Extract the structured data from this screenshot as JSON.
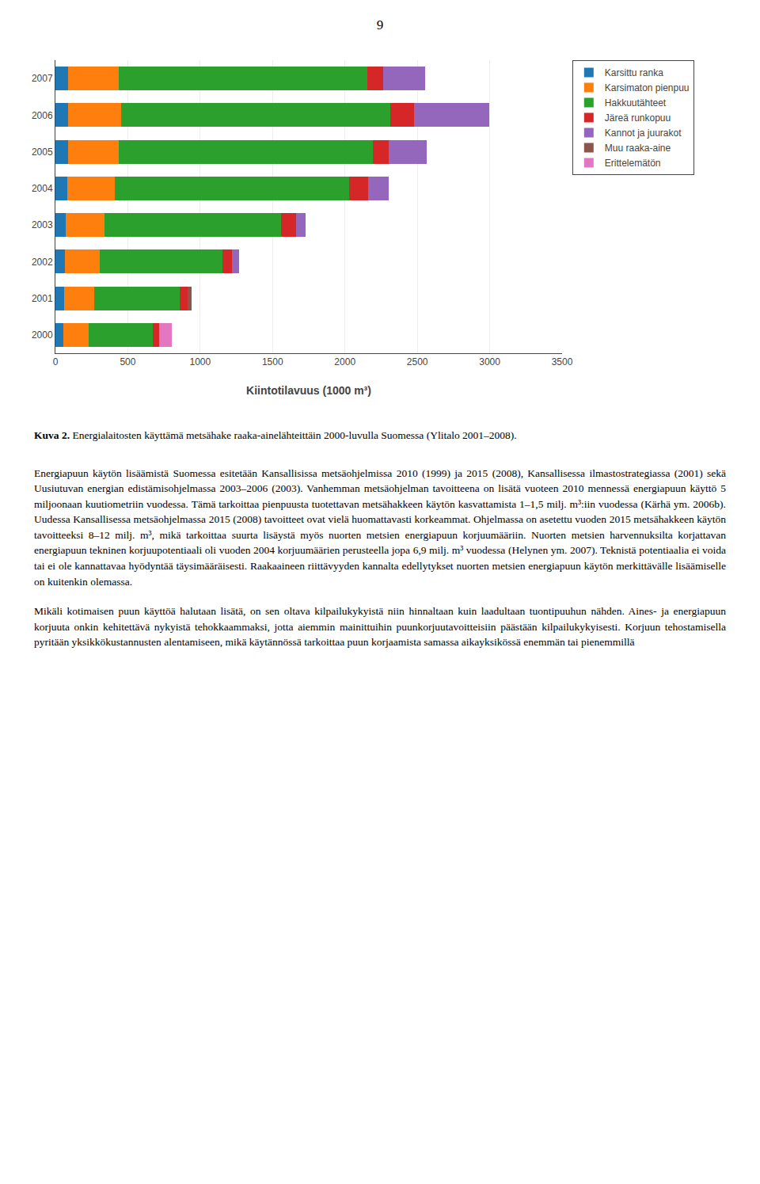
{
  "page_number": "9",
  "caption": {
    "bold": "Kuva 2.",
    "text": " Energialaitosten käyttämä metsähake raaka-ainelähteittäin 2000-luvulla Suomessa (Ylitalo 2001–2008)."
  },
  "paragraphs": [
    "Energiapuun käytön lisäämistä Suomessa esitetään Kansallisissa metsäohjelmissa 2010 (1999) ja 2015 (2008), Kansallisessa ilmastostrategiassa (2001) sekä Uusiutuvan energian edistämisohjelmassa 2003–2006 (2003). Vanhemman metsäohjelman tavoitteena on lisätä vuoteen 2010 mennessä energiapuun käyttö 5 miljoonaan kuutiometriin vuodessa. Tämä tarkoittaa pienpuusta tuotettavan metsähakkeen käytön kasvattamista 1–1,5 milj. m³:iin vuodessa (Kärhä ym. 2006b). Uudessa Kansallisessa metsäohjelmassa 2015 (2008) tavoitteet ovat vielä huomattavasti korkeammat. Ohjelmassa on asetettu vuoden 2015 metsähakkeen käytön tavoitteeksi 8–12 milj. m³, mikä tarkoittaa suurta lisäystä myös nuorten metsien energiapuun korjuumääriin. Nuorten metsien harvennuksilta korjattavan energiapuun tekninen korjuupotentiaali oli vuoden 2004 korjuumäärien perusteella jopa 6,9 milj. m³ vuodessa (Helynen ym. 2007). Teknistä potentiaalia ei voida tai ei ole kannattavaa hyödyntää täysimääräisesti. Raakaaineen riittävyyden kannalta edellytykset nuorten metsien energiapuun käytön merkittävälle lisäämiselle on kuitenkin olemassa.",
    "Mikäli kotimaisen puun käyttöä halutaan lisätä, on sen oltava kilpailukykyistä niin hinnaltaan kuin laadultaan tuontipuuhun nähden. Aines- ja energiapuun korjuuta onkin kehitettävä nykyistä tehokkaammaksi, jotta aiemmin mainittuihin puunkorjuutavoitteisiin päästään kilpailukykyisesti. Korjuun tehostamisella pyritään yksikkökustannusten alentamiseen, mikä käytännössä tarkoittaa puun korjaamista samassa aikayksikössä enemmän tai pienemmillä"
  ],
  "chart_data": {
    "type": "bar",
    "orientation": "horizontal",
    "stacked": true,
    "categories": [
      "2000",
      "2001",
      "2002",
      "2003",
      "2004",
      "2005",
      "2006",
      "2007"
    ],
    "series": [
      {
        "name": "Karsittu ranka",
        "values": [
          55,
          60,
          65,
          70,
          80,
          85,
          85,
          85
        ]
      },
      {
        "name": "Karsimaton pienpuu",
        "values": [
          175,
          210,
          240,
          270,
          330,
          350,
          370,
          350
        ]
      },
      {
        "name": "Hakkuutähteet",
        "values": [
          440,
          590,
          850,
          1220,
          1620,
          1760,
          1860,
          1720
        ]
      },
      {
        "name": "Järeä runkopuu",
        "values": [
          45,
          55,
          65,
          100,
          130,
          110,
          160,
          110
        ]
      },
      {
        "name": "Kannot ja juurakot",
        "values": [
          0,
          0,
          50,
          70,
          140,
          260,
          520,
          290
        ]
      },
      {
        "name": "Muu raaka-aine",
        "values": [
          0,
          25,
          0,
          0,
          0,
          0,
          0,
          0
        ]
      },
      {
        "name": "Erittelemätön",
        "values": [
          90,
          0,
          0,
          0,
          0,
          0,
          0,
          0
        ]
      }
    ],
    "xlabel": "Kiintotilavuus (1000 m³)",
    "xlim": [
      0,
      3500
    ],
    "xticks": [
      0,
      500,
      1000,
      1500,
      2000,
      2500,
      3000,
      3500
    ],
    "grid": true,
    "legend": "upper right"
  }
}
